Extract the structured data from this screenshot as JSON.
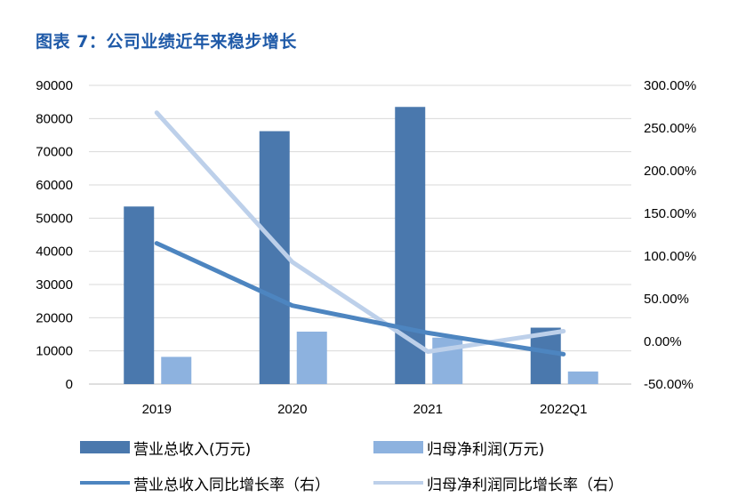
{
  "title": "图表 7：公司业绩近年来稳步增长",
  "colors": {
    "revenue_bar": "#4a78ad",
    "profit_bar": "#8db2df",
    "revenue_line": "#4d85c0",
    "profit_line": "#bdd0ea",
    "grid": "#d9d9d9",
    "title": "#1f5aa8"
  },
  "chart_data": {
    "type": "bar",
    "categories": [
      "2019",
      "2020",
      "2021",
      "2022Q1"
    ],
    "series": [
      {
        "name": "营业总收入(万元)",
        "type": "bar",
        "axis": "left",
        "values": [
          53500,
          76200,
          83500,
          17000
        ]
      },
      {
        "name": "归母净利润(万元)",
        "type": "bar",
        "axis": "left",
        "values": [
          8200,
          15800,
          14000,
          3800
        ]
      },
      {
        "name": "营业总收入同比增长率（右）",
        "type": "line",
        "axis": "right",
        "values": [
          1.15,
          0.42,
          0.1,
          -0.15
        ]
      },
      {
        "name": "归母净利润同比增长率（右）",
        "type": "line",
        "axis": "right",
        "values": [
          2.68,
          0.93,
          -0.12,
          0.12
        ]
      }
    ],
    "y_left": {
      "lim": [
        0,
        90000
      ],
      "ticks": [
        "0",
        "10000",
        "20000",
        "30000",
        "40000",
        "50000",
        "60000",
        "70000",
        "80000",
        "90000"
      ]
    },
    "y_right": {
      "lim": [
        -0.5,
        3.0
      ],
      "ticks": [
        "-50.00%",
        "0.00%",
        "50.00%",
        "100.00%",
        "150.00%",
        "200.00%",
        "250.00%",
        "300.00%"
      ]
    },
    "grid": true,
    "legend_position": "bottom"
  },
  "legend": [
    {
      "label": "营业总收入(万元)",
      "kind": "bar",
      "color": "#4a78ad"
    },
    {
      "label": "归母净利润(万元)",
      "kind": "bar",
      "color": "#8db2df"
    },
    {
      "label": "营业总收入同比增长率（右）",
      "kind": "line",
      "color": "#4d85c0"
    },
    {
      "label": "归母净利润同比增长率（右）",
      "kind": "line",
      "color": "#bdd0ea"
    }
  ]
}
